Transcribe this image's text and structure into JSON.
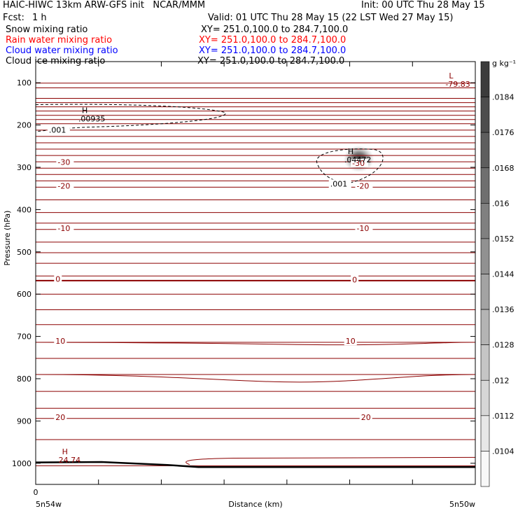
{
  "header": {
    "title_left": "HAIC-HIWC 13km ARW-GFS init   NCAR/MMM",
    "init": "Init: 00 UTC Thu 28 May 15",
    "fcst_label": "Fcst:",
    "fcst_value": "1 h",
    "valid": "Valid: 01 UTC Thu 28 May 15 (22 LST Wed 27 May 15)",
    "fields": [
      {
        "name": "Snow mixing ratio",
        "xy": "XY= 251.0,100.0 to 284.7,100.0",
        "color": "#000000"
      },
      {
        "name": "Rain water mixing ratio",
        "xy": "XY= 251.0,100.0 to 284.7,100.0",
        "color": "#ff0000"
      },
      {
        "name": "Cloud water mixing ratio",
        "xy": "XY= 251.0,100.0 to 284.7,100.0",
        "color": "#0000ff"
      },
      {
        "name": "Cloud ice mixing ratio",
        "xy": "XY= 251.0,100.0 to 284.7,100.0",
        "color": "#000000"
      }
    ]
  },
  "chart_data": {
    "type": "contour",
    "ylabel": "Pressure (hPa)",
    "xlabel": "Distance (km)",
    "x_left_label": "5n54w",
    "x_right_label": "5n50w",
    "x_ticks": [
      "0"
    ],
    "y_ticks": [
      "100",
      "200",
      "300",
      "400",
      "500",
      "600",
      "700",
      "800",
      "900",
      "1000"
    ],
    "y_range_hpa": [
      50,
      1050
    ],
    "colorbar": {
      "unit": "g kg⁻¹",
      "labels": [
        ".0184",
        ".0176",
        ".0168",
        ".016",
        ".0152",
        ".0144",
        ".0136",
        ".0128",
        ".012",
        ".0112",
        ".0104"
      ]
    },
    "temperature_contour_labels": [
      {
        "text": "-30",
        "p": 291,
        "x": 0.05,
        "color": "#8b0000"
      },
      {
        "text": "-30",
        "p": 293,
        "x": 0.72,
        "color": "#8b0000"
      },
      {
        "text": "-20",
        "p": 347,
        "x": 0.05,
        "color": "#8b0000"
      },
      {
        "text": "-20",
        "p": 347,
        "x": 0.73,
        "color": "#8b0000"
      },
      {
        "text": "-10",
        "p": 447,
        "x": 0.05,
        "color": "#8b0000"
      },
      {
        "text": "-10",
        "p": 447,
        "x": 0.73,
        "color": "#8b0000"
      },
      {
        "text": "0",
        "p": 567,
        "x": 0.045,
        "color": "#8b0000"
      },
      {
        "text": "0",
        "p": 569,
        "x": 0.72,
        "color": "#8b0000"
      },
      {
        "text": "10",
        "p": 714,
        "x": 0.045,
        "color": "#8b0000"
      },
      {
        "text": "10",
        "p": 714,
        "x": 0.705,
        "color": "#8b0000"
      },
      {
        "text": "20",
        "p": 894,
        "x": 0.045,
        "color": "#8b0000"
      },
      {
        "text": "20",
        "p": 894,
        "x": 0.74,
        "color": "#8b0000"
      }
    ],
    "mixing_ratio_contour_labels": [
      {
        "text": ".001",
        "p": 215,
        "x": 0.03
      },
      {
        "text": ".001",
        "p": 342,
        "x": 0.67
      }
    ],
    "extrema": [
      {
        "letter": "L",
        "value": "-79.83",
        "p": 108,
        "x": 0.94,
        "color": "#8b0000"
      },
      {
        "letter": "H",
        "value": ".00935",
        "p": 190,
        "x": 0.105,
        "color": "#000000"
      },
      {
        "letter": "H",
        "value": ".04472",
        "p": 287,
        "x": 0.71,
        "color": "#000000"
      },
      {
        "letter": "H",
        "value": "24.74",
        "p": 997,
        "x": 0.06,
        "color": "#8b0000"
      }
    ]
  }
}
